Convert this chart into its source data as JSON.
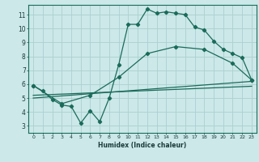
{
  "title": "",
  "xlabel": "Humidex (Indice chaleur)",
  "bg_color": "#cce8e8",
  "grid_color": "#aad0d0",
  "line_color": "#1a6b5a",
  "xlim": [
    -0.5,
    23.5
  ],
  "ylim": [
    2.5,
    11.7
  ],
  "xticks": [
    0,
    1,
    2,
    3,
    4,
    5,
    6,
    7,
    8,
    9,
    10,
    11,
    12,
    13,
    14,
    15,
    16,
    17,
    18,
    19,
    20,
    21,
    22,
    23
  ],
  "yticks": [
    3,
    4,
    5,
    6,
    7,
    8,
    9,
    10,
    11
  ],
  "series1": {
    "x": [
      0,
      1,
      2,
      3,
      4,
      5,
      6,
      7,
      8,
      9,
      10,
      11,
      12,
      13,
      14,
      15,
      16,
      17,
      18,
      19,
      20,
      21,
      22,
      23
    ],
    "y": [
      5.9,
      5.5,
      4.9,
      4.5,
      4.4,
      3.2,
      4.1,
      3.3,
      5.0,
      7.4,
      10.3,
      10.3,
      11.4,
      11.1,
      11.2,
      11.1,
      11.0,
      10.1,
      9.9,
      9.1,
      8.5,
      8.2,
      7.9,
      6.3
    ]
  },
  "series2": {
    "x": [
      0,
      3,
      6,
      9,
      12,
      15,
      18,
      21,
      23
    ],
    "y": [
      5.9,
      4.6,
      5.2,
      6.5,
      8.2,
      8.7,
      8.5,
      7.5,
      6.3
    ]
  },
  "series3": {
    "x": [
      0,
      23
    ],
    "y": [
      5.0,
      6.2
    ]
  },
  "series4": {
    "x": [
      0,
      23
    ],
    "y": [
      5.2,
      5.85
    ]
  }
}
